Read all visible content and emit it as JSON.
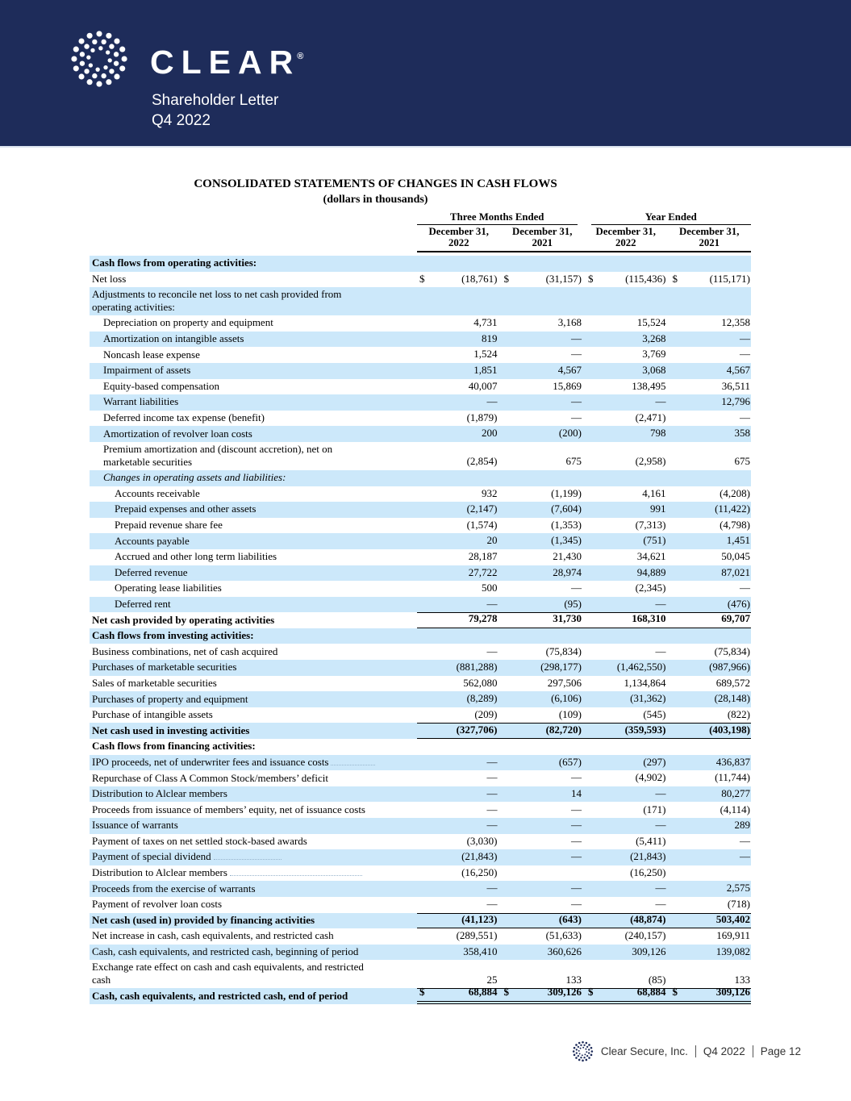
{
  "header": {
    "brand": "CLEAR",
    "reg": "®",
    "subtitle_line1": "Shareholder Letter",
    "subtitle_line2": "Q4 2022",
    "bg_color": "#1e2c5a"
  },
  "document": {
    "title": "CONSOLIDATED STATEMENTS OF CHANGES IN CASH FLOWS",
    "subtitle": "(dollars in thousands)",
    "col_groups": [
      "Three Months Ended",
      "Year Ended"
    ],
    "col_headers": [
      {
        "line1": "December 31,",
        "line2": "2022"
      },
      {
        "line1": "December 31,",
        "line2": "2021"
      },
      {
        "line1": "December 31,",
        "line2": "2022"
      },
      {
        "line1": "December 31,",
        "line2": "2021"
      }
    ],
    "row_highlight_color": "#cce8fa",
    "rows": [
      {
        "label": "Cash flows from operating activities:",
        "bold": 1,
        "hl": 1,
        "values": null
      },
      {
        "label": "Net loss",
        "dollar": 1,
        "values": [
          "(18,761)",
          "(31,157)",
          "(115,436)",
          "(115,171)"
        ]
      },
      {
        "label": "Adjustments to reconcile net loss to net cash provided from\noperating activities:",
        "hl": 1,
        "tall": 1,
        "values": null
      },
      {
        "label": "Depreciation on property and equipment",
        "i": 1,
        "values": [
          "4,731",
          "3,168",
          "15,524",
          "12,358"
        ]
      },
      {
        "label": "Amortization on intangible assets",
        "i": 1,
        "hl": 1,
        "values": [
          "819",
          "—",
          "3,268",
          "—"
        ]
      },
      {
        "label": "Noncash lease expense",
        "i": 1,
        "values": [
          "1,524",
          "—",
          "3,769",
          "—"
        ]
      },
      {
        "label": "Impairment of assets",
        "i": 1,
        "hl": 1,
        "values": [
          "1,851",
          "4,567",
          "3,068",
          "4,567"
        ]
      },
      {
        "label": "Equity-based compensation",
        "i": 1,
        "values": [
          "40,007",
          "15,869",
          "138,495",
          "36,511"
        ]
      },
      {
        "label": "Warrant liabilities",
        "i": 1,
        "hl": 1,
        "values": [
          "—",
          "—",
          "—",
          "12,796"
        ]
      },
      {
        "label": "Deferred income tax expense (benefit)",
        "i": 1,
        "values": [
          "(1,879)",
          "—",
          "(2,471)",
          "—"
        ]
      },
      {
        "label": "Amortization of revolver loan costs",
        "i": 1,
        "hl": 1,
        "values": [
          "200",
          "(200)",
          "798",
          "358"
        ]
      },
      {
        "label": "Premium amortization and (discount accretion), net on\nmarketable securities",
        "i": 1,
        "tall": 1,
        "values": [
          "(2,854)",
          "675",
          "(2,958)",
          "675"
        ]
      },
      {
        "label": "Changes in operating assets and liabilities:",
        "i": 1,
        "hl": 1,
        "italic": 1,
        "values": null
      },
      {
        "label": "Accounts receivable",
        "i": 2,
        "values": [
          "932",
          "(1,199)",
          "4,161",
          "(4,208)"
        ]
      },
      {
        "label": "Prepaid expenses and other assets",
        "i": 2,
        "hl": 1,
        "values": [
          "(2,147)",
          "(7,604)",
          "991",
          "(11,422)"
        ]
      },
      {
        "label": "Prepaid revenue share fee",
        "i": 2,
        "values": [
          "(1,574)",
          "(1,353)",
          "(7,313)",
          "(4,798)"
        ]
      },
      {
        "label": "Accounts payable",
        "i": 2,
        "hl": 1,
        "values": [
          "20",
          "(1,345)",
          "(751)",
          "1,451"
        ]
      },
      {
        "label": "Accrued and other long term liabilities",
        "i": 2,
        "values": [
          "28,187",
          "21,430",
          "34,621",
          "50,045"
        ]
      },
      {
        "label": "Deferred revenue",
        "i": 2,
        "hl": 1,
        "values": [
          "27,722",
          "28,974",
          "94,889",
          "87,021"
        ]
      },
      {
        "label": "Operating lease liabilities",
        "i": 2,
        "values": [
          "500",
          "—",
          "(2,345)",
          "—"
        ]
      },
      {
        "label": "Deferred rent",
        "i": 2,
        "hl": 1,
        "values": [
          "—",
          "(95)",
          "—",
          "(476)"
        ]
      },
      {
        "label": "Net cash provided by operating activities",
        "bold": 1,
        "rule": "mid",
        "values": [
          "79,278",
          "31,730",
          "168,310",
          "69,707"
        ]
      },
      {
        "label": "Cash flows from investing activities:",
        "bold": 1,
        "hl": 1,
        "values": null
      },
      {
        "label": "Business combinations, net of cash acquired",
        "values": [
          "—",
          "(75,834)",
          "—",
          "(75,834)"
        ]
      },
      {
        "label": "Purchases of marketable securities",
        "hl": 1,
        "values": [
          "(881,288)",
          "(298,177)",
          "(1,462,550)",
          "(987,966)"
        ]
      },
      {
        "label": "Sales of marketable securities",
        "values": [
          "562,080",
          "297,506",
          "1,134,864",
          "689,572"
        ]
      },
      {
        "label": "Purchases of property and equipment",
        "hl": 1,
        "values": [
          "(8,289)",
          "(6,106)",
          "(31,362)",
          "(28,148)"
        ]
      },
      {
        "label": "Purchase of intangible assets",
        "values": [
          "(209)",
          "(109)",
          "(545)",
          "(822)"
        ]
      },
      {
        "label": "Net cash used in investing activities",
        "bold": 1,
        "hl": 1,
        "rule": "mid",
        "values": [
          "(327,706)",
          "(82,720)",
          "(359,593)",
          "(403,198)"
        ]
      },
      {
        "label": "Cash flows from financing activities:",
        "bold": 1,
        "values": null
      },
      {
        "label": "IPO proceeds, net of underwriter fees and issuance costs",
        "hl": 1,
        "leader": 55,
        "values": [
          "—",
          "(657)",
          "(297)",
          "436,837"
        ]
      },
      {
        "label": "Repurchase of Class A Common Stock/members’ deficit",
        "values": [
          "—",
          "—",
          "(4,902)",
          "(11,744)"
        ]
      },
      {
        "label": "Distribution to Alclear members",
        "hl": 1,
        "values": [
          "—",
          "14",
          "—",
          "80,277"
        ]
      },
      {
        "label": "Proceeds from issuance of members’ equity, net of issuance costs",
        "values": [
          "—",
          "—",
          "(171)",
          "(4,114)"
        ]
      },
      {
        "label": "Issuance of warrants",
        "hl": 1,
        "values": [
          "—",
          "—",
          "—",
          "289"
        ]
      },
      {
        "label": "Payment of taxes on net settled stock-based awards",
        "values": [
          "(3,030)",
          "—",
          "(5,411)",
          "—"
        ]
      },
      {
        "label": "Payment of special dividend",
        "hl": 1,
        "leader": 84,
        "values": [
          "(21,843)",
          "—",
          "(21,843)",
          "—"
        ]
      },
      {
        "label": "Distribution to Alclear members",
        "leader": 164,
        "values": [
          "(16,250)",
          "",
          "(16,250)",
          ""
        ]
      },
      {
        "label": "Proceeds from the exercise of warrants",
        "hl": 1,
        "values": [
          "—",
          "—",
          "—",
          "2,575"
        ]
      },
      {
        "label": "Payment of revolver loan costs",
        "values": [
          "—",
          "—",
          "—",
          "(718)"
        ]
      },
      {
        "label": "Net cash (used in) provided by financing activities",
        "bold": 1,
        "hl": 1,
        "rule": "mid",
        "values": [
          "(41,123)",
          "(643)",
          "(48,874)",
          "503,402"
        ]
      },
      {
        "label": "Net increase in cash, cash equivalents, and restricted cash",
        "values": [
          "(289,551)",
          "(51,633)",
          "(240,157)",
          "169,911"
        ]
      },
      {
        "label": "Cash, cash equivalents, and restricted cash, beginning of period",
        "hl": 1,
        "values": [
          "358,410",
          "360,626",
          "309,126",
          "139,082"
        ]
      },
      {
        "label": "Exchange rate effect on cash and cash equivalents, and restricted\ncash",
        "tall": 1,
        "values": [
          "25",
          "133",
          "(85)",
          "133"
        ]
      },
      {
        "label": "Cash, cash equivalents, and restricted cash, end of period",
        "bold": 1,
        "hl": 1,
        "rule": "end",
        "dollar": 1,
        "values": [
          "68,884",
          "309,126",
          "68,884",
          "309,126"
        ]
      }
    ]
  },
  "footer": {
    "company": "Clear Secure, Inc.",
    "period": "Q4 2022",
    "page": "Page 12"
  }
}
